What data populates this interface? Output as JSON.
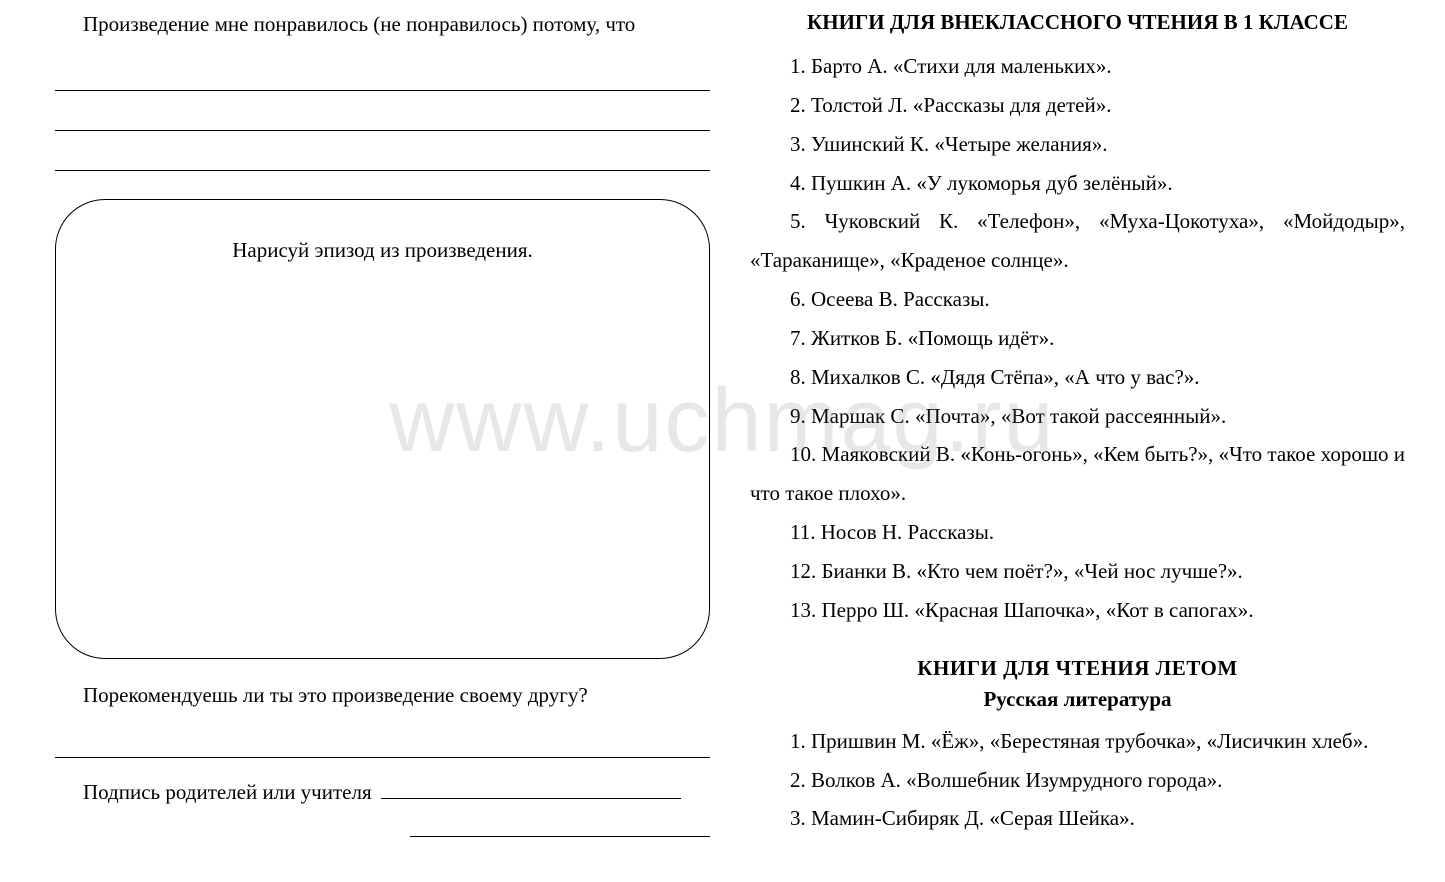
{
  "left": {
    "prompt1": "Произведение мне понравилось (не понравилось) потому, что",
    "drawBoxLabel": "Нарисуй эпизод из произведения.",
    "prompt2": "Порекомендуешь ли ты это произведение своему другу?",
    "signatureLabel": "Подпись родителей или учителя"
  },
  "right": {
    "heading1": "КНИГИ ДЛЯ ВНЕКЛАССНОГО ЧТЕНИЯ В 1 КЛАССЕ",
    "list1": [
      "1. Барто А. «Стихи для маленьких».",
      "2. Толстой Л. «Рассказы для детей».",
      "3. Ушинский К. «Четыре желания».",
      "4. Пушкин А. «У лукоморья дуб зелёный».",
      "5. Чуковский К. «Телефон», «Муха-Цокотуха», «Мойдодыр», «Тараканище», «Краденое солнце».",
      "6. Осеева В. Рассказы.",
      "7. Житков Б. «Помощь идёт».",
      "8. Михалков С. «Дядя Стёпа», «А что у вас?».",
      "9. Маршак С. «Почта», «Вот такой рассеянный».",
      "10. Маяковский В. «Конь-огонь», «Кем быть?», «Что такое хорошо и что такое плохо».",
      "11. Носов Н. Рассказы.",
      "12. Бианки В. «Кто чем поёт?», «Чей нос лучше?».",
      "13. Перро Ш. «Красная Шапочка», «Кот в сапогах»."
    ],
    "heading2": "КНИГИ ДЛЯ ЧТЕНИЯ ЛЕТОМ",
    "heading3": "Русская литература",
    "list2": [
      "1. Пришвин М. «Ёж», «Берестяная трубочка», «Лисичкин хлеб».",
      "2. Волков А. «Волшебник Изумрудного города».",
      "3. Мамин-Сибиряк Д. «Серая Шейка»."
    ]
  },
  "watermark": "www.uchmag.ru"
}
